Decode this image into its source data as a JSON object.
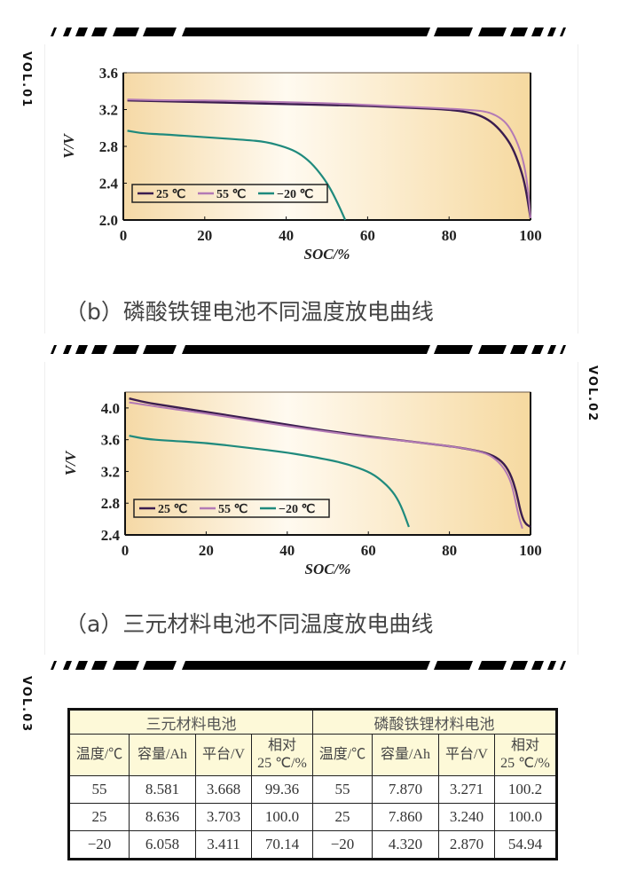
{
  "colors": {
    "series_25": "#3b1d4f",
    "series_55": "#b37ab5",
    "series_m20": "#1f8a7d",
    "plot_bg_light": "#fffaf0",
    "plot_bg_dark": "#f6d9a0",
    "table_header_bg": "#fdf9d8"
  },
  "side_labels": {
    "vol1": "VOL.01",
    "vol2": "VOL.02",
    "vol3": "VOL.03"
  },
  "captions": {
    "chart_b": "（b）磷酸铁锂电池不同温度放电曲线",
    "chart_a": "（a）三元材料电池不同温度放电曲线"
  },
  "chart_data": [
    {
      "id": "b",
      "type": "line",
      "title": "（b）磷酸铁锂电池不同温度放电曲线",
      "xlabel": "SOC/%",
      "ylabel": "V/V",
      "xlim": [
        0,
        100
      ],
      "ylim": [
        2.0,
        3.6
      ],
      "xticks": [
        "0",
        "20",
        "40",
        "60",
        "80",
        "100"
      ],
      "yticks": [
        "2.0",
        "2.4",
        "2.8",
        "3.2",
        "3.6"
      ],
      "legend": [
        "25 ℃",
        "55 ℃",
        "−20 ℃"
      ],
      "legend_position": "lower-left",
      "grid": false,
      "series": [
        {
          "name": "25 ℃",
          "x": [
            1,
            10,
            20,
            30,
            40,
            50,
            60,
            70,
            80,
            85,
            88,
            91,
            94,
            96,
            98,
            99,
            100
          ],
          "values": [
            3.3,
            3.29,
            3.28,
            3.27,
            3.26,
            3.25,
            3.24,
            3.22,
            3.2,
            3.17,
            3.13,
            3.05,
            2.9,
            2.75,
            2.5,
            2.3,
            2.02
          ]
        },
        {
          "name": "55 ℃",
          "x": [
            1,
            10,
            20,
            30,
            40,
            50,
            60,
            70,
            80,
            87,
            90,
            93,
            95,
            97,
            98.5,
            99.5,
            100
          ],
          "values": [
            3.31,
            3.3,
            3.3,
            3.29,
            3.28,
            3.27,
            3.25,
            3.23,
            3.21,
            3.19,
            3.17,
            3.1,
            3.0,
            2.82,
            2.6,
            2.3,
            2.02
          ]
        },
        {
          "name": "−20 ℃",
          "x": [
            1,
            5,
            10,
            20,
            30,
            35,
            40,
            43,
            46,
            49,
            51,
            53,
            54.5
          ],
          "values": [
            2.97,
            2.94,
            2.93,
            2.9,
            2.87,
            2.85,
            2.79,
            2.73,
            2.63,
            2.47,
            2.33,
            2.15,
            2.0
          ]
        }
      ]
    },
    {
      "id": "a",
      "type": "line",
      "title": "（a）三元材料电池不同温度放电曲线",
      "xlabel": "SOC/%",
      "ylabel": "V/V",
      "xlim": [
        0,
        100
      ],
      "ylim": [
        2.4,
        4.2
      ],
      "xticks": [
        "0",
        "20",
        "40",
        "60",
        "80",
        "100"
      ],
      "yticks": [
        "2.4",
        "2.8",
        "3.2",
        "3.6",
        "4.0"
      ],
      "legend": [
        "25 ℃",
        "55 ℃",
        "−20 ℃"
      ],
      "legend_position": "lower-left",
      "grid": false,
      "series": [
        {
          "name": "25 ℃",
          "x": [
            1,
            5,
            10,
            20,
            30,
            40,
            50,
            60,
            70,
            80,
            86,
            90,
            93,
            95,
            96.5,
            97.5,
            98.5,
            100
          ],
          "values": [
            4.12,
            4.07,
            4.03,
            3.95,
            3.87,
            3.79,
            3.71,
            3.64,
            3.58,
            3.52,
            3.47,
            3.42,
            3.33,
            3.18,
            2.95,
            2.7,
            2.55,
            2.5
          ]
        },
        {
          "name": "55 ℃",
          "x": [
            1,
            5,
            10,
            20,
            30,
            40,
            50,
            60,
            70,
            80,
            86,
            90,
            93,
            95,
            96,
            97,
            98
          ],
          "values": [
            4.07,
            4.04,
            4.0,
            3.93,
            3.85,
            3.77,
            3.7,
            3.63,
            3.58,
            3.52,
            3.47,
            3.41,
            3.28,
            3.1,
            2.9,
            2.65,
            2.48
          ]
        },
        {
          "name": "−20 ℃",
          "x": [
            1,
            5,
            10,
            20,
            30,
            40,
            50,
            55,
            60,
            63,
            66,
            68,
            70
          ],
          "values": [
            3.65,
            3.61,
            3.59,
            3.56,
            3.5,
            3.44,
            3.35,
            3.29,
            3.2,
            3.1,
            2.95,
            2.78,
            2.5
          ]
        }
      ]
    },
    {
      "id": "table",
      "type": "table",
      "groups": [
        "三元材料电池",
        "磷酸铁锂材料电池"
      ],
      "columns": [
        "温度/℃",
        "容量/Ah",
        "平台/V",
        "相对",
        "25 ℃/%"
      ],
      "header_cells": [
        [
          "温度/℃"
        ],
        [
          "容量/Ah"
        ],
        [
          "平台/V"
        ],
        [
          "相对",
          "25 ℃/%"
        ],
        [
          "温度/℃"
        ],
        [
          "容量/Ah"
        ],
        [
          "平台/V"
        ],
        [
          "相对",
          "25 ℃/%"
        ]
      ],
      "rows": [
        [
          "55",
          "8.581",
          "3.668",
          "99.36",
          "55",
          "7.870",
          "3.271",
          "100.2"
        ],
        [
          "25",
          "8.636",
          "3.703",
          "100.0",
          "25",
          "7.860",
          "3.240",
          "100.0"
        ],
        [
          "−20",
          "6.058",
          "3.411",
          "70.14",
          "−20",
          "4.320",
          "2.870",
          "54.94"
        ]
      ]
    }
  ]
}
